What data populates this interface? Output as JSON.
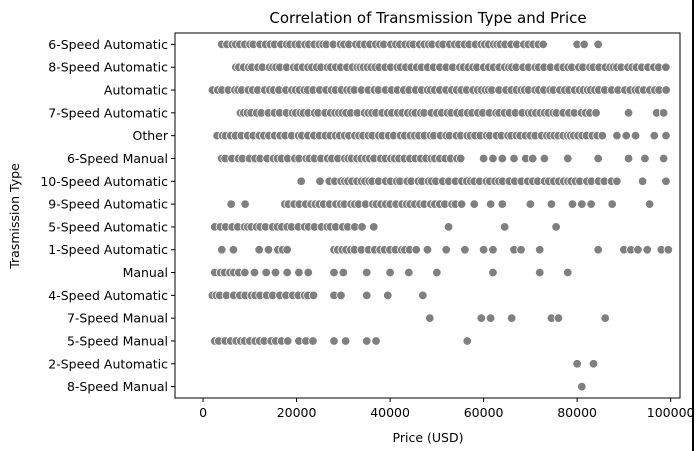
{
  "chart_data": {
    "type": "scatter",
    "title": "Correlation of Transmission Type and Price",
    "xlabel": "Price (USD)",
    "ylabel": "Trasmission Type",
    "xlim": [
      -6000,
      102000
    ],
    "xticks": [
      0,
      20000,
      40000,
      60000,
      80000,
      100000
    ],
    "xtick_labels": [
      "0",
      "20000",
      "40000",
      "60000",
      "80000",
      "100000"
    ],
    "grid": false,
    "legend": "none",
    "marker_color": "#808080",
    "marker_edge_color": "#ffffff",
    "categories": [
      "6-Speed Automatic",
      "8-Speed Automatic",
      "Automatic",
      "7-Speed Automatic",
      "Other",
      "6-Speed Manual",
      "10-Speed Automatic",
      "9-Speed Automatic",
      "5-Speed Automatic",
      "1-Speed Automatic",
      "Manual",
      "4-Speed Automatic",
      "7-Speed Manual",
      "5-Speed Manual",
      "2-Speed Automatic",
      "8-Speed Manual"
    ],
    "points": [
      {
        "category": "6-Speed Automatic",
        "ranges": [
          [
            4000,
            73000
          ]
        ],
        "x": [
          80000,
          81500,
          84500
        ]
      },
      {
        "category": "8-Speed Automatic",
        "ranges": [
          [
            7000,
            99500
          ]
        ],
        "x": []
      },
      {
        "category": "Automatic",
        "ranges": [
          [
            2000,
            99500
          ]
        ],
        "x": []
      },
      {
        "category": "7-Speed Automatic",
        "ranges": [
          [
            8000,
            85000
          ]
        ],
        "x": [
          91000,
          97000,
          98500
        ]
      },
      {
        "category": "Other",
        "ranges": [
          [
            3000,
            86000
          ]
        ],
        "x": [
          88500,
          90500,
          92500,
          96500,
          99000
        ]
      },
      {
        "category": "6-Speed Manual",
        "ranges": [
          [
            4000,
            56000
          ]
        ],
        "x": [
          60000,
          62000,
          64000,
          66500,
          69000,
          70500,
          73000,
          78000,
          84500,
          91000,
          94500,
          98500
        ]
      },
      {
        "category": "10-Speed Automatic",
        "ranges": [
          [
            27000,
            88000
          ]
        ],
        "x": [
          21000,
          25000,
          88500,
          94000,
          99000
        ]
      },
      {
        "category": "9-Speed Automatic",
        "ranges": [
          [
            17500,
            56000
          ]
        ],
        "x": [
          6000,
          9000,
          58000,
          61500,
          64000,
          70000,
          74500,
          79000,
          81000,
          83000,
          87500,
          95500
        ]
      },
      {
        "category": "5-Speed Automatic",
        "ranges": [
          [
            2500,
            33000
          ]
        ],
        "x": [
          34000,
          36500,
          52500,
          64500,
          75500
        ]
      },
      {
        "category": "1-Speed Automatic",
        "ranges": [
          [
            28000,
            46000
          ]
        ],
        "x": [
          4000,
          6500,
          12000,
          14000,
          16000,
          17000,
          18000,
          48000,
          52000,
          56000,
          60000,
          62000,
          66500,
          68000,
          72000,
          84500,
          90000,
          91500,
          93000,
          95000,
          98000,
          99500
        ]
      },
      {
        "category": "Manual",
        "ranges": [
          [
            2500,
            9000
          ]
        ],
        "x": [
          11000,
          13500,
          15500,
          18000,
          20500,
          22500,
          28000,
          30000,
          35000,
          40000,
          44000,
          50000,
          62000,
          72000,
          78000
        ]
      },
      {
        "category": "4-Speed Automatic",
        "ranges": [
          [
            2000,
            24000
          ]
        ],
        "x": [
          28000,
          29500,
          35000,
          39500,
          47000
        ]
      },
      {
        "category": "7-Speed Manual",
        "ranges": [],
        "x": [
          48500,
          59500,
          61500,
          66000,
          74500,
          76000,
          86000
        ]
      },
      {
        "category": "5-Speed Manual",
        "ranges": [
          [
            2500,
            19000
          ]
        ],
        "x": [
          20500,
          22000,
          23500,
          28000,
          30500,
          35000,
          37000,
          56500
        ]
      },
      {
        "category": "2-Speed Automatic",
        "ranges": [],
        "x": [
          80000,
          83500
        ]
      },
      {
        "category": "8-Speed Manual",
        "ranges": [],
        "x": [
          81000
        ]
      }
    ]
  }
}
